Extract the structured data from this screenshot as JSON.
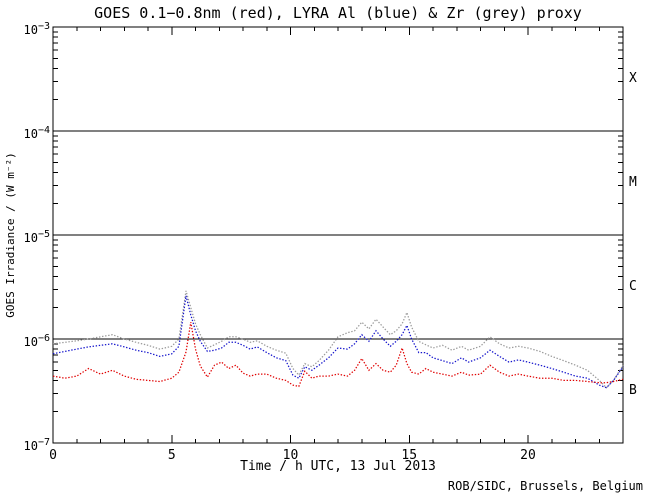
{
  "chart_data": {
    "type": "line",
    "title": "GOES 0.1−0.8nm (red), LYRA Al (blue) & Zr (grey) proxy",
    "xlabel": "Time / h UTC, 13 Jul 2013",
    "ylabel": "GOES Irradiance / (W m⁻²)",
    "credit": "ROB/SIDC, Brussels, Belgium",
    "xlim": [
      0,
      24
    ],
    "ylim": [
      1e-07,
      0.001
    ],
    "yscale": "log",
    "grid": false,
    "legend": "in-title",
    "x_major_ticks": [
      0,
      5,
      10,
      15,
      20
    ],
    "x_minor_step": 1,
    "y_decades": [
      -3,
      -4,
      -5,
      -6,
      -7
    ],
    "reference_lines": [
      0.0001,
      1e-05,
      1e-06
    ],
    "flare_classes": [
      {
        "label": "X",
        "level": 0.000316
      },
      {
        "label": "M",
        "level": 3.16e-05
      },
      {
        "label": "C",
        "level": 3.16e-06
      },
      {
        "label": "B",
        "level": 3.16e-07
      }
    ],
    "axis_color": "#000000",
    "x": [
      0,
      0.5,
      1,
      1.5,
      2,
      2.5,
      3,
      3.5,
      4,
      4.5,
      5,
      5.3,
      5.6,
      5.8,
      6,
      6.2,
      6.5,
      6.8,
      7.1,
      7.4,
      7.7,
      8,
      8.3,
      8.6,
      9,
      9.4,
      9.8,
      10.1,
      10.35,
      10.6,
      10.9,
      11.2,
      11.6,
      12,
      12.4,
      12.7,
      13,
      13.3,
      13.6,
      13.9,
      14.2,
      14.45,
      14.7,
      14.9,
      15.1,
      15.4,
      15.7,
      16,
      16.4,
      16.8,
      17.2,
      17.5,
      18,
      18.4,
      18.8,
      19.2,
      19.6,
      20,
      20.5,
      21,
      21.5,
      22,
      22.5,
      23,
      23.3,
      23.6,
      24
    ],
    "series": [
      {
        "id": "zr-grey",
        "name": "LYRA Zr proxy",
        "color": "#999999",
        "values": [
          9e-07,
          9.3e-07,
          9.6e-07,
          1e-06,
          1.05e-06,
          1.1e-06,
          1e-06,
          9.3e-07,
          8.7e-07,
          8e-07,
          8.5e-07,
          1e-06,
          2.9e-06,
          2e-06,
          1.4e-06,
          1.1e-06,
          8.2e-07,
          8.8e-07,
          9.5e-07,
          1.05e-06,
          1.05e-06,
          1e-06,
          9.3e-07,
          9.6e-07,
          8.5e-07,
          7.8e-07,
          7.3e-07,
          5.2e-07,
          4.5e-07,
          5.8e-07,
          5.4e-07,
          6.2e-07,
          7.8e-07,
          1.05e-06,
          1.15e-06,
          1.2e-06,
          1.45e-06,
          1.25e-06,
          1.55e-06,
          1.3e-06,
          1.1e-06,
          1.2e-06,
          1.4e-06,
          1.8e-06,
          1.3e-06,
          9.5e-07,
          8.8e-07,
          8.2e-07,
          8.7e-07,
          7.8e-07,
          8.5e-07,
          7.8e-07,
          8.5e-07,
          1.05e-06,
          9e-07,
          8.2e-07,
          8.5e-07,
          8.2e-07,
          7.6e-07,
          6.8e-07,
          6.2e-07,
          5.6e-07,
          5e-07,
          4e-07,
          3.4e-07,
          4e-07,
          5.6e-07
        ]
      },
      {
        "id": "al-blue",
        "name": "LYRA Al proxy",
        "color": "#1414cc",
        "values": [
          7.2e-07,
          7.6e-07,
          8e-07,
          8.4e-07,
          8.7e-07,
          9e-07,
          8.4e-07,
          7.8e-07,
          7.4e-07,
          6.8e-07,
          7.2e-07,
          8.5e-07,
          2.6e-06,
          1.7e-06,
          1.2e-06,
          9.5e-07,
          7.6e-07,
          7.8e-07,
          8.2e-07,
          9.3e-07,
          9.3e-07,
          8.7e-07,
          8e-07,
          8.4e-07,
          7.4e-07,
          6.6e-07,
          6.2e-07,
          4.5e-07,
          4.2e-07,
          5.4e-07,
          5e-07,
          5.6e-07,
          6.6e-07,
          8.2e-07,
          8e-07,
          9e-07,
          1.1e-06,
          9.5e-07,
          1.2e-06,
          1e-06,
          8.5e-07,
          9.5e-07,
          1.1e-06,
          1.35e-06,
          1e-06,
          7.4e-07,
          7.4e-07,
          6.6e-07,
          6.2e-07,
          5.8e-07,
          6.6e-07,
          6e-07,
          6.6e-07,
          7.8e-07,
          6.8e-07,
          6e-07,
          6.3e-07,
          6e-07,
          5.6e-07,
          5.2e-07,
          4.8e-07,
          4.4e-07,
          4.2e-07,
          3.6e-07,
          3.4e-07,
          4e-07,
          5.4e-07
        ]
      },
      {
        "id": "goes-red",
        "name": "GOES 0.1−0.8nm",
        "color": "#e00000",
        "values": [
          4.4e-07,
          4.2e-07,
          4.4e-07,
          5.2e-07,
          4.6e-07,
          5e-07,
          4.4e-07,
          4.1e-07,
          4e-07,
          3.9e-07,
          4.2e-07,
          4.8e-07,
          7.5e-07,
          1.45e-06,
          8e-07,
          5.5e-07,
          4.3e-07,
          5.6e-07,
          6e-07,
          5.2e-07,
          5.6e-07,
          4.7e-07,
          4.4e-07,
          4.6e-07,
          4.6e-07,
          4.2e-07,
          4e-07,
          3.6e-07,
          3.5e-07,
          4.9e-07,
          4.2e-07,
          4.4e-07,
          4.4e-07,
          4.6e-07,
          4.4e-07,
          5e-07,
          6.5e-07,
          5e-07,
          5.8e-07,
          5e-07,
          4.8e-07,
          5.6e-07,
          8.2e-07,
          5.8e-07,
          4.8e-07,
          4.6e-07,
          5.2e-07,
          4.8e-07,
          4.6e-07,
          4.4e-07,
          4.8e-07,
          4.5e-07,
          4.6e-07,
          5.6e-07,
          4.8e-07,
          4.4e-07,
          4.6e-07,
          4.4e-07,
          4.2e-07,
          4.2e-07,
          4e-07,
          4e-07,
          3.9e-07,
          3.8e-07,
          3.8e-07,
          3.9e-07,
          4.1e-07
        ]
      }
    ]
  }
}
